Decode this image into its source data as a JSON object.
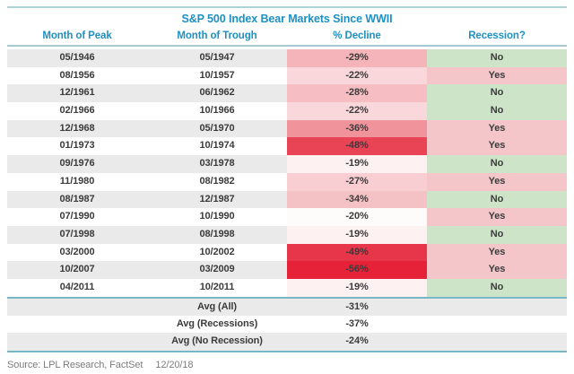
{
  "chart_data": {
    "type": "table",
    "title": "S&P 500 Index Bear Markets Since WWII",
    "columns": [
      "Month of Peak",
      "Month of Trough",
      "% Decline",
      "Recession?"
    ],
    "rows": [
      {
        "peak": "05/1946",
        "trough": "05/1947",
        "decline": "-29%",
        "recession": "No",
        "decline_color": "#f5b4b9"
      },
      {
        "peak": "08/1956",
        "trough": "10/1957",
        "decline": "-22%",
        "recession": "Yes",
        "decline_color": "#f9d7da"
      },
      {
        "peak": "12/1961",
        "trough": "06/1962",
        "decline": "-28%",
        "recession": "No",
        "decline_color": "#f6bec2"
      },
      {
        "peak": "02/1966",
        "trough": "10/1966",
        "decline": "-22%",
        "recession": "No",
        "decline_color": "#f9d7da"
      },
      {
        "peak": "12/1968",
        "trough": "05/1970",
        "decline": "-36%",
        "recession": "Yes",
        "decline_color": "#f0939b"
      },
      {
        "peak": "01/1973",
        "trough": "10/1974",
        "decline": "-48%",
        "recession": "Yes",
        "decline_color": "#e94356"
      },
      {
        "peak": "09/1976",
        "trough": "03/1978",
        "decline": "-19%",
        "recession": "No",
        "decline_color": "#fdf1f2"
      },
      {
        "peak": "11/1980",
        "trough": "08/1982",
        "decline": "-27%",
        "recession": "Yes",
        "decline_color": "#f8ced2"
      },
      {
        "peak": "08/1987",
        "trough": "12/1987",
        "decline": "-34%",
        "recession": "No",
        "decline_color": "#f4c1c5"
      },
      {
        "peak": "07/1990",
        "trough": "10/1990",
        "decline": "-20%",
        "recession": "Yes",
        "decline_color": "#fefbfb"
      },
      {
        "peak": "07/1998",
        "trough": "08/1998",
        "decline": "-19%",
        "recession": "No",
        "decline_color": "#fdf1f2"
      },
      {
        "peak": "03/2000",
        "trough": "10/2002",
        "decline": "-49%",
        "recession": "Yes",
        "decline_color": "#e7354a"
      },
      {
        "peak": "10/2007",
        "trough": "03/2009",
        "decline": "-56%",
        "recession": "Yes",
        "decline_color": "#e52238"
      },
      {
        "peak": "04/2011",
        "trough": "10/2011",
        "decline": "-19%",
        "recession": "No",
        "decline_color": "#fdf1f2"
      }
    ],
    "summary": [
      {
        "label": "Avg (All)",
        "decline": "-31%"
      },
      {
        "label": "Avg (Recessions)",
        "decline": "-37%"
      },
      {
        "label": "Avg (No Recession)",
        "decline": "-24%"
      }
    ],
    "source": "Source: LPL Research, FactSet",
    "source_date": "12/20/18"
  },
  "colors": {
    "accent": "#1e90c1",
    "text": "#3b3b3b",
    "stripe": "#eaeaea",
    "no_bg": "#cee4c8",
    "yes_bg": "#f4c5c9",
    "rule_top": "#abd3da",
    "rule_header": "#a6c8d2",
    "rule_divider": "#77b7c6",
    "source": "#7c7c7c"
  }
}
